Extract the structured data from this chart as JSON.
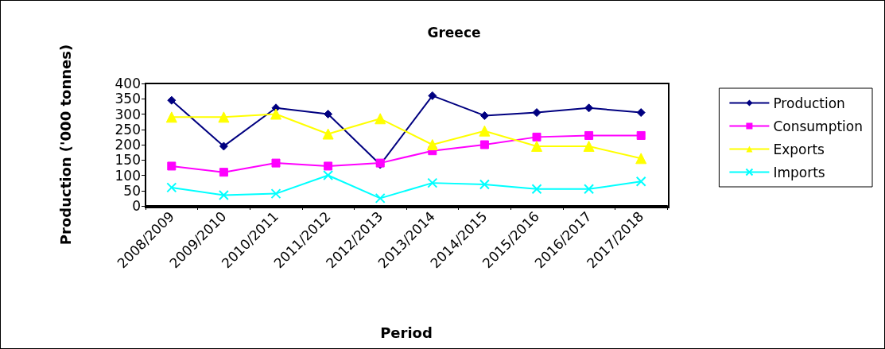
{
  "chart_data": {
    "type": "line",
    "title": "Greece",
    "xlabel": "Period",
    "ylabel": "Production ('000 tonnes)",
    "categories": [
      "2008/2009",
      "2009/2010",
      "2010/2011",
      "2011/2012",
      "2012/2013",
      "2013/2014",
      "2014/2015",
      "2015/2016",
      "2016/2017",
      "2017/2018"
    ],
    "series": [
      {
        "name": "Production",
        "color": "#000080",
        "marker": "diamond",
        "values": [
          345,
          195,
          320,
          300,
          135,
          360,
          295,
          305,
          320,
          305
        ]
      },
      {
        "name": "Consumption",
        "color": "#ff00ff",
        "marker": "square",
        "values": [
          130,
          110,
          140,
          130,
          140,
          180,
          200,
          225,
          230,
          230
        ]
      },
      {
        "name": "Exports",
        "color": "#ffff00",
        "marker": "triangle",
        "values": [
          290,
          290,
          300,
          235,
          285,
          200,
          245,
          195,
          195,
          155
        ]
      },
      {
        "name": "Imports",
        "color": "#00ffff",
        "marker": "cross",
        "values": [
          60,
          35,
          40,
          100,
          25,
          75,
          70,
          55,
          55,
          80
        ]
      }
    ],
    "ylim": [
      0,
      400
    ],
    "yticks": [
      0,
      50,
      100,
      150,
      200,
      250,
      300,
      350,
      400
    ],
    "grid": false,
    "legend": "right"
  }
}
